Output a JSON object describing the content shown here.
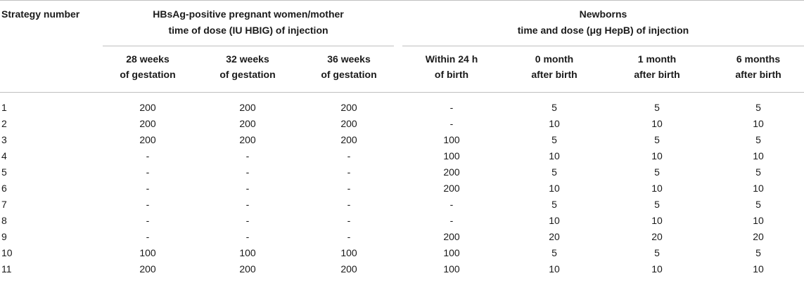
{
  "header": {
    "strategy_col": "Strategy number",
    "mother_line1": "HBsAg-positive pregnant women/mother",
    "mother_line2": "time of dose (IU HBIG) of injection",
    "newborn_line1": "Newborns",
    "newborn_line2": "time and dose (μg HepB) of injection",
    "sub": [
      [
        "28 weeks",
        "of gestation"
      ],
      [
        "32 weeks",
        "of gestation"
      ],
      [
        "36 weeks",
        "of gestation"
      ],
      [
        "Within 24 h",
        "of birth"
      ],
      [
        "0 month",
        "after birth"
      ],
      [
        "1 month",
        "after birth"
      ],
      [
        "6 months",
        "after birth"
      ]
    ]
  },
  "rows": [
    [
      "1",
      "200",
      "200",
      "200",
      "-",
      "5",
      "5",
      "5"
    ],
    [
      "2",
      "200",
      "200",
      "200",
      "-",
      "10",
      "10",
      "10"
    ],
    [
      "3",
      "200",
      "200",
      "200",
      "100",
      "5",
      "5",
      "5"
    ],
    [
      "4",
      "-",
      "-",
      "-",
      "100",
      "10",
      "10",
      "10"
    ],
    [
      "5",
      "-",
      "-",
      "-",
      "200",
      "5",
      "5",
      "5"
    ],
    [
      "6",
      "-",
      "-",
      "-",
      "200",
      "10",
      "10",
      "10"
    ],
    [
      "7",
      "-",
      "-",
      "-",
      "-",
      "5",
      "5",
      "5"
    ],
    [
      "8",
      "-",
      "-",
      "-",
      "-",
      "10",
      "10",
      "10"
    ],
    [
      "9",
      "-",
      "-",
      "-",
      "200",
      "20",
      "20",
      "20"
    ],
    [
      "10",
      "100",
      "100",
      "100",
      "100",
      "5",
      "5",
      "5"
    ],
    [
      "11",
      "200",
      "200",
      "200",
      "100",
      "10",
      "10",
      "10"
    ]
  ]
}
